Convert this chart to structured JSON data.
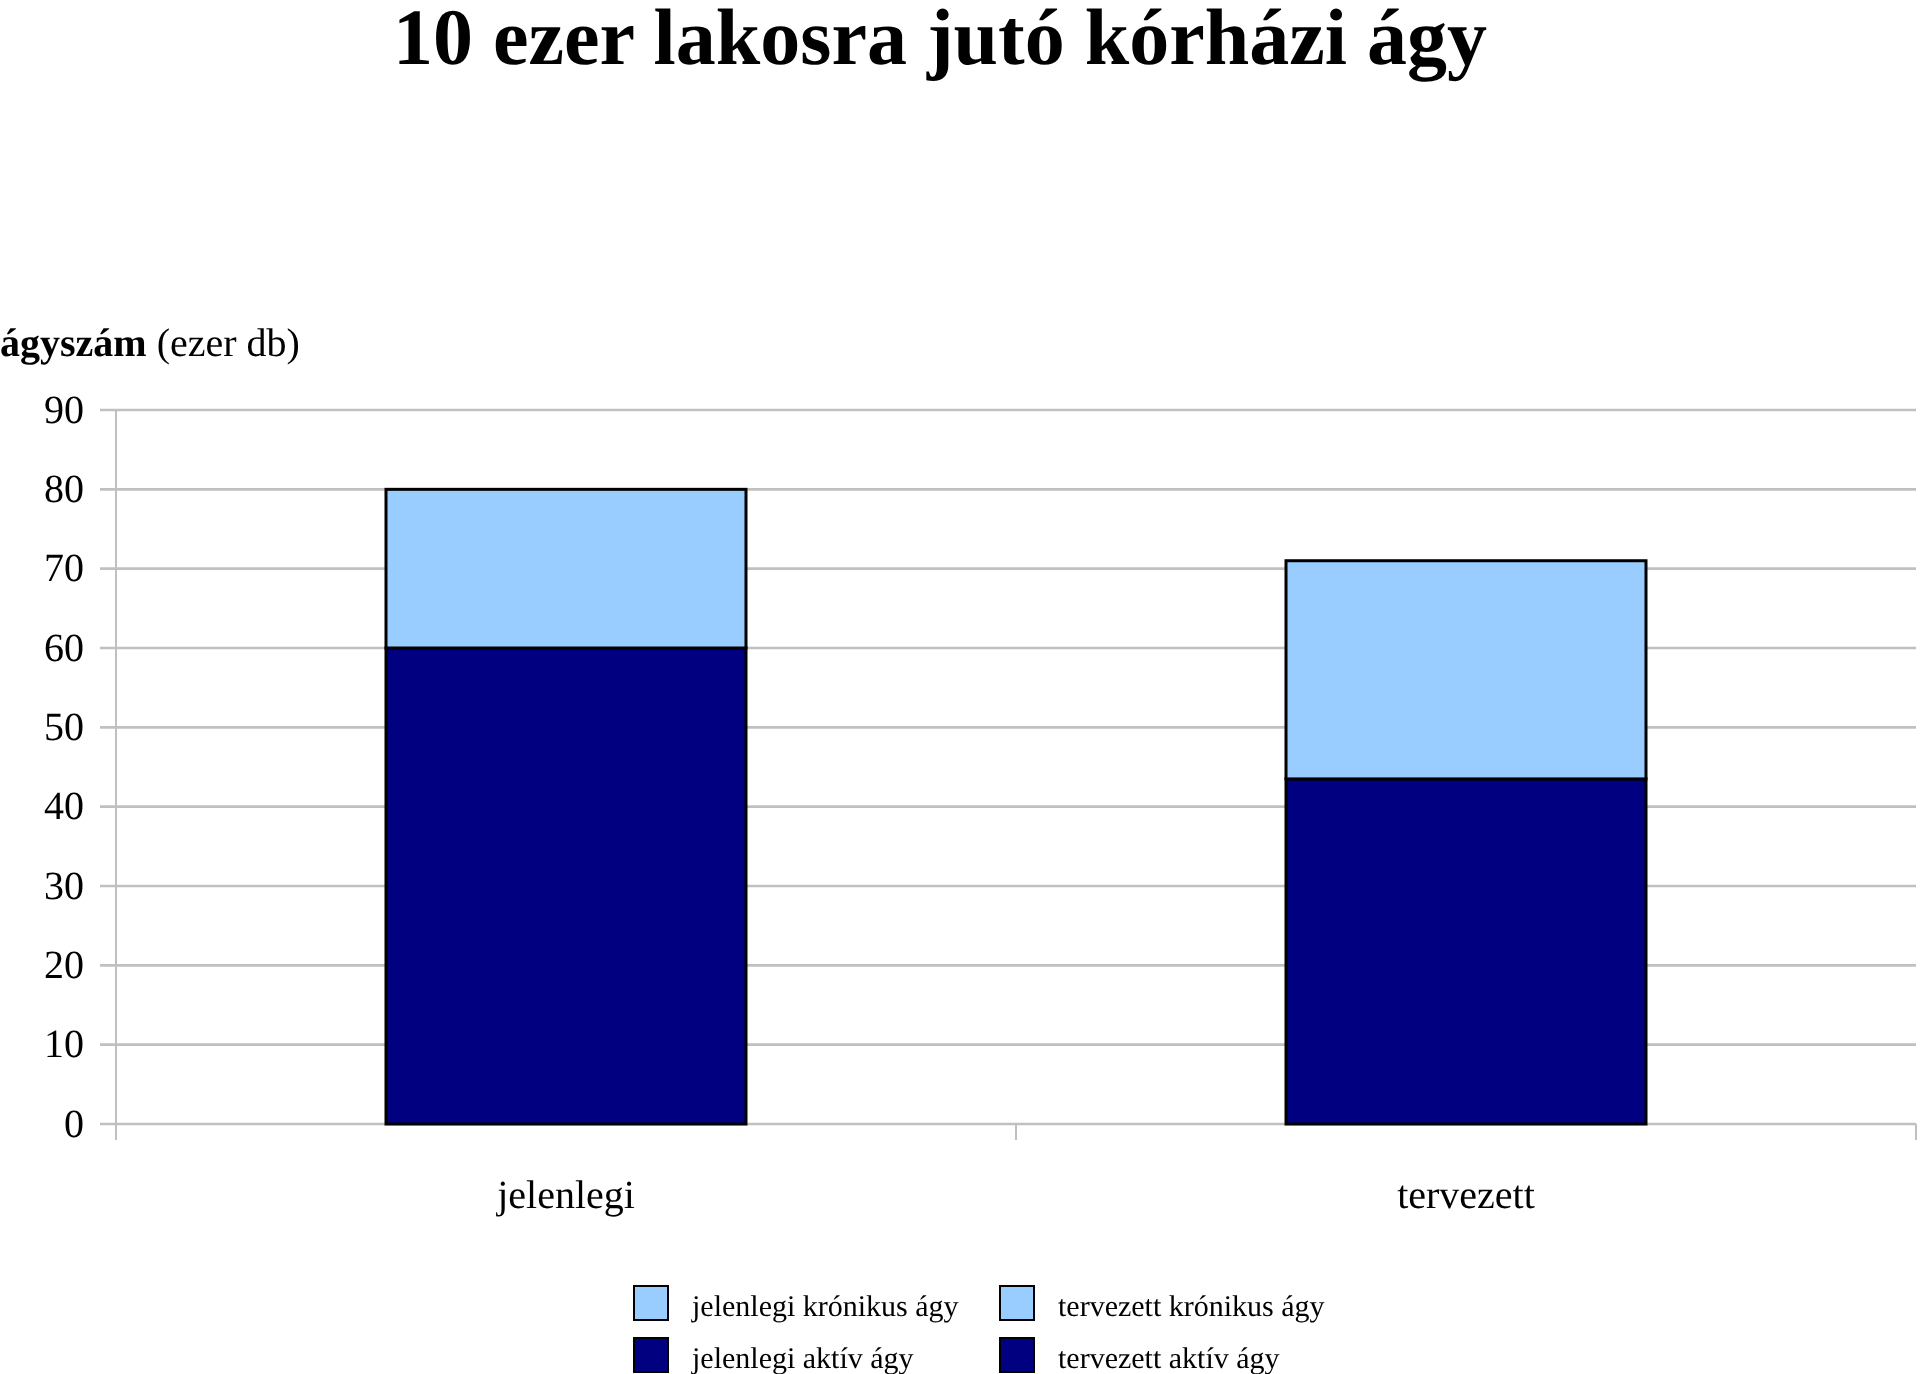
{
  "chart_data": {
    "type": "bar",
    "title": "10 ezer lakosra jutó kórházi ágy",
    "ylabel": "ágyszám (ezer db)",
    "categories": [
      "jelenlegi",
      "tervezett"
    ],
    "stacked": true,
    "ylim": [
      0,
      90
    ],
    "yticks": [
      0,
      10,
      20,
      30,
      40,
      50,
      60,
      70,
      80,
      90
    ],
    "grid": "y",
    "legend": "bottom",
    "series": [
      {
        "name": "jelenlegi aktív ágy",
        "color": "#000080",
        "values": [
          60,
          null
        ]
      },
      {
        "name": "jelenlegi krónikus ágy",
        "color": "#99ccff",
        "values": [
          20,
          null
        ]
      },
      {
        "name": "tervezett aktív ágy",
        "color": "#000080",
        "values": [
          null,
          43.5
        ]
      },
      {
        "name": "tervezett krónikus ágy",
        "color": "#99ccff",
        "values": [
          null,
          27.5
        ]
      }
    ]
  }
}
